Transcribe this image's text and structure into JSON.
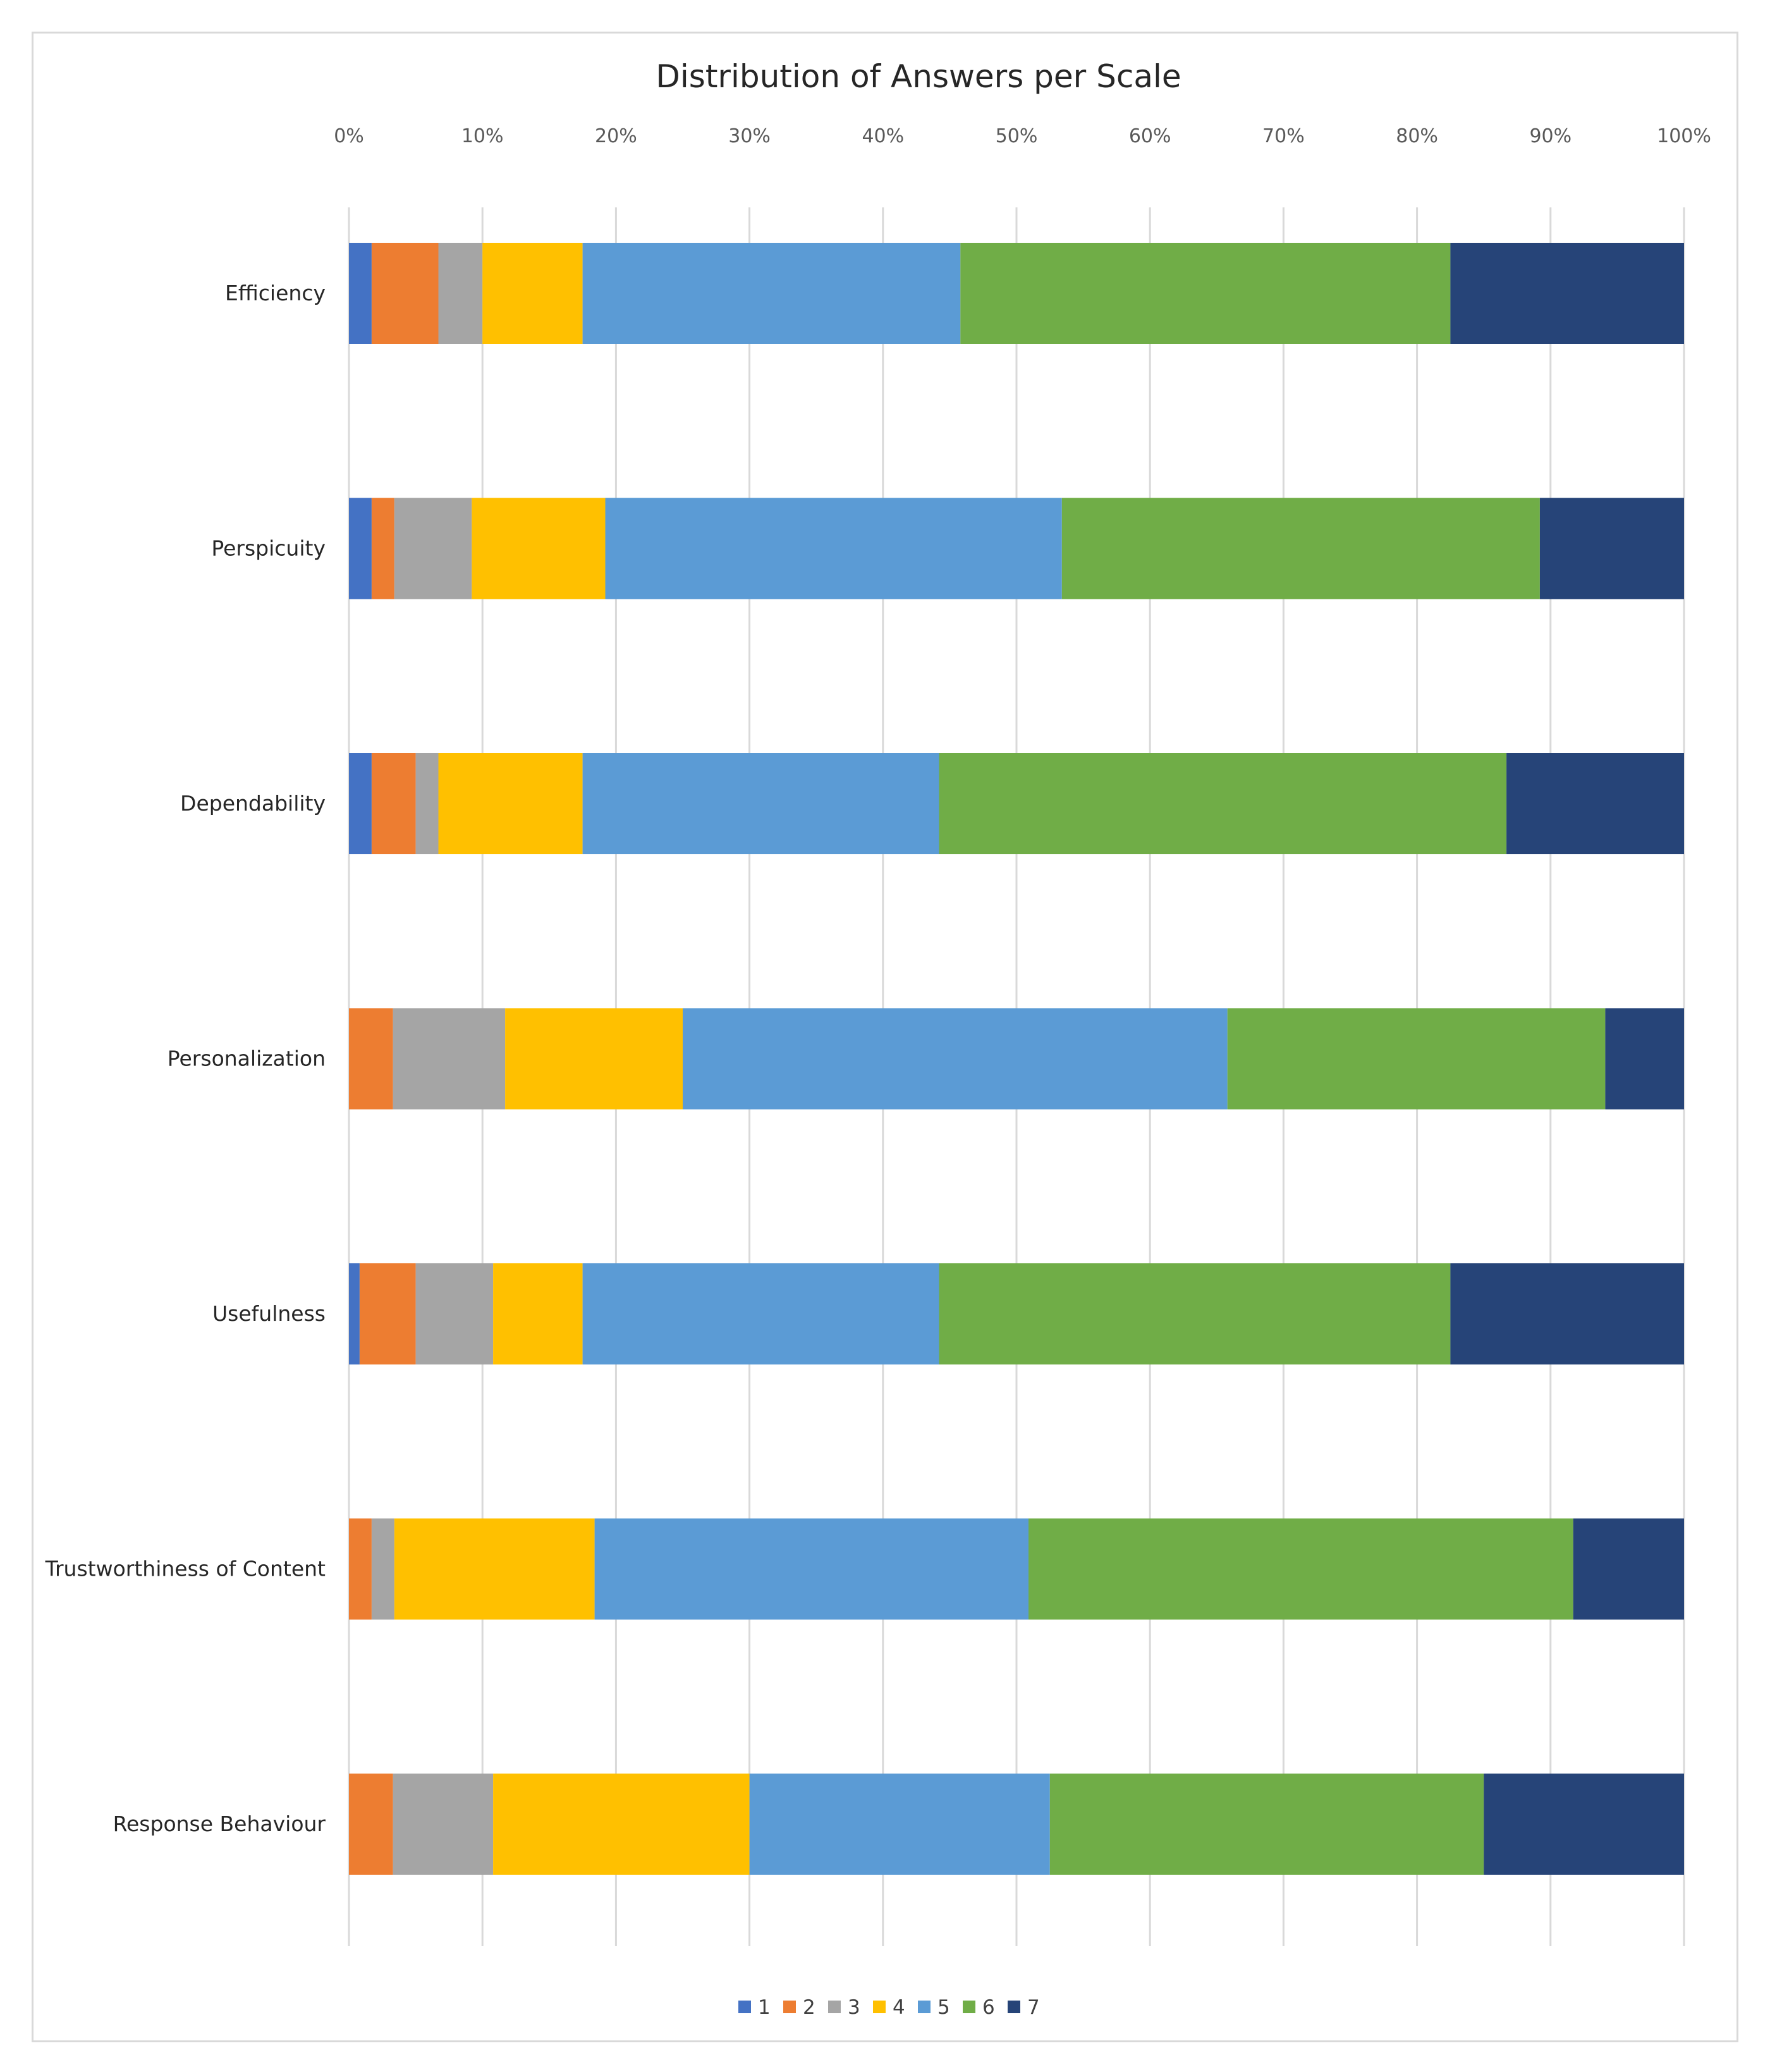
{
  "chart_data": {
    "type": "bar",
    "orientation": "horizontal",
    "stacked": "percent",
    "title": "Distribution of Answers per Scale",
    "xlabel": "",
    "ylabel": "",
    "xlim": [
      0,
      100
    ],
    "x_ticks": [
      0,
      10,
      20,
      30,
      40,
      50,
      60,
      70,
      80,
      90,
      100
    ],
    "x_tick_labels": [
      "0%",
      "10%",
      "20%",
      "30%",
      "40%",
      "50%",
      "60%",
      "70%",
      "80%",
      "90%",
      "100%"
    ],
    "grid": "vertical",
    "legend_position": "bottom",
    "categories": [
      "Efficiency",
      "Perspicuity",
      "Dependability",
      "Personalization",
      "Usefulness",
      "Trustworthiness of Content",
      "Response Behaviour"
    ],
    "series": [
      {
        "name": "1",
        "color": "#4472c4",
        "values": [
          1.7,
          1.7,
          1.7,
          0.0,
          0.8,
          0.0,
          0.0
        ]
      },
      {
        "name": "2",
        "color": "#ed7d31",
        "values": [
          5.0,
          1.7,
          3.3,
          3.3,
          4.2,
          1.7,
          3.3
        ]
      },
      {
        "name": "3",
        "color": "#a5a5a5",
        "values": [
          3.3,
          5.8,
          1.7,
          8.4,
          5.8,
          1.7,
          7.5
        ]
      },
      {
        "name": "4",
        "color": "#ffc000",
        "values": [
          7.5,
          10.0,
          10.8,
          13.3,
          6.7,
          15.0,
          19.2
        ]
      },
      {
        "name": "5",
        "color": "#5b9bd5",
        "values": [
          28.3,
          34.2,
          26.7,
          40.8,
          26.7,
          32.5,
          22.5
        ]
      },
      {
        "name": "6",
        "color": "#70ad47",
        "values": [
          36.7,
          35.8,
          42.5,
          28.3,
          38.3,
          40.8,
          32.5
        ]
      },
      {
        "name": "7",
        "color": "#264478",
        "values": [
          17.5,
          10.8,
          13.3,
          5.9,
          17.5,
          8.3,
          15.0
        ]
      }
    ]
  }
}
